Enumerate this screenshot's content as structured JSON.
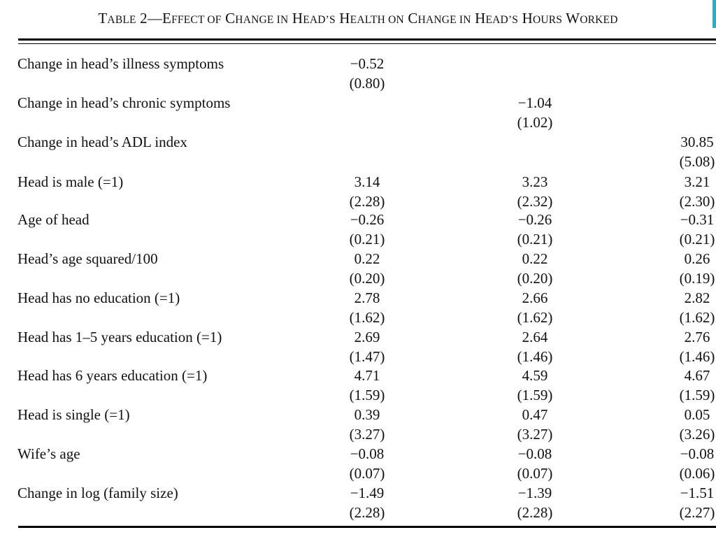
{
  "table": {
    "caption": {
      "t1": "T",
      "t2": "ABLE",
      "t3": " 2—E",
      "t4": "FFECT OF",
      "t5": " C",
      "t6": "HANGE IN",
      "t7": " H",
      "t8": "EAD’S",
      "t9": " H",
      "t10": "EALTH ON",
      "t11": " C",
      "t12": "HANGE IN",
      "t13": " H",
      "t14": "EAD’S",
      "t15": " H",
      "t16": "OURS",
      "t17": " W",
      "t18": "ORKED"
    },
    "rows": [
      {
        "label": "Change in head’s illness symptoms",
        "c1": "−0.52",
        "c1_se": "(0.80)",
        "c2": "",
        "c2_se": "",
        "c3": "",
        "c3_se": ""
      },
      {
        "label": "Change in head’s chronic symptoms",
        "c1": "",
        "c1_se": "",
        "c2": "−1.04",
        "c2_se": "(1.02)",
        "c3": "",
        "c3_se": ""
      },
      {
        "label": "Change in head’s ADL index",
        "c1": "",
        "c1_se": "",
        "c2": "",
        "c2_se": "",
        "c3": "30.85",
        "c3_se": "(5.08)"
      },
      {
        "label": "Head is male (=1)",
        "c1": "3.14",
        "c1_se": "(2.28)",
        "c2": "3.23",
        "c2_se": "(2.32)",
        "c3": "3.21",
        "c3_se": "(2.30)"
      },
      {
        "label": "Age of head",
        "c1": "−0.26",
        "c1_se": "(0.21)",
        "c2": "−0.26",
        "c2_se": "(0.21)",
        "c3": "−0.31",
        "c3_se": "(0.21)"
      },
      {
        "label": "Head’s age squared/100",
        "c1": "0.22",
        "c1_se": "(0.20)",
        "c2": "0.22",
        "c2_se": "(0.20)",
        "c3": "0.26",
        "c3_se": "(0.19)"
      },
      {
        "label": "Head has no education (=1)",
        "c1": "2.78",
        "c1_se": "(1.62)",
        "c2": "2.66",
        "c2_se": "(1.62)",
        "c3": "2.82",
        "c3_se": "(1.62)"
      },
      {
        "label": "Head has 1–5 years education (=1)",
        "c1": "2.69",
        "c1_se": "(1.47)",
        "c2": "2.64",
        "c2_se": "(1.46)",
        "c3": "2.76",
        "c3_se": "(1.46)"
      },
      {
        "label": "Head has 6 years education (=1)",
        "c1": "4.71",
        "c1_se": "(1.59)",
        "c2": "4.59",
        "c2_se": "(1.59)",
        "c3": "4.67",
        "c3_se": "(1.59)"
      },
      {
        "label": "Head is single (=1)",
        "c1": "0.39",
        "c1_se": "(3.27)",
        "c2": "0.47",
        "c2_se": "(3.27)",
        "c3": "0.05",
        "c3_se": "(3.26)"
      },
      {
        "label": "Wife’s age",
        "c1": "−0.08",
        "c1_se": "(0.07)",
        "c2": "−0.08",
        "c2_se": "(0.07)",
        "c3": "−0.08",
        "c3_se": "(0.06)"
      },
      {
        "label": "Change in log (family size)",
        "c1": "−1.49",
        "c1_se": "(2.28)",
        "c2": "−1.39",
        "c2_se": "(2.28)",
        "c3": "−1.51",
        "c3_se": "(2.27)"
      }
    ]
  },
  "colors": {
    "text": "#111111",
    "rule": "#000000",
    "edge_accent": "#20b2c8"
  }
}
